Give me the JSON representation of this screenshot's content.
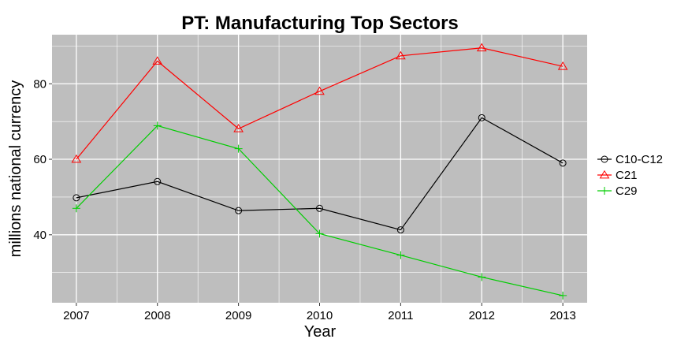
{
  "chart_data": {
    "type": "line",
    "title": "PT: Manufacturing Top Sectors",
    "xlabel": "Year",
    "ylabel": "millions national currency",
    "x": [
      2007,
      2008,
      2009,
      2010,
      2011,
      2012,
      2013
    ],
    "x_tick_labels": [
      "2007",
      "2008",
      "2009",
      "2010",
      "2011",
      "2012",
      "2013"
    ],
    "y_ticks": [
      40,
      60,
      80
    ],
    "y_tick_labels": [
      "40",
      "60",
      "80"
    ],
    "xlim": [
      2006.7,
      2013.3
    ],
    "ylim": [
      22,
      93
    ],
    "grid": true,
    "panel_background": "#bebebe",
    "grid_color": "#ffffff",
    "legend_position": "right",
    "series": [
      {
        "name": "C10-C12",
        "color": "#000000",
        "marker": "circle",
        "values": [
          49.8,
          54.1,
          46.4,
          47.0,
          41.3,
          71.0,
          59.0
        ]
      },
      {
        "name": "C21",
        "color": "#ff0000",
        "marker": "triangle",
        "values": [
          60.0,
          86.0,
          68.1,
          78.0,
          87.4,
          89.5,
          84.6
        ]
      },
      {
        "name": "C29",
        "color": "#00cd00",
        "marker": "plus",
        "values": [
          47.0,
          68.9,
          62.8,
          40.3,
          34.6,
          28.8,
          23.9
        ]
      }
    ]
  }
}
